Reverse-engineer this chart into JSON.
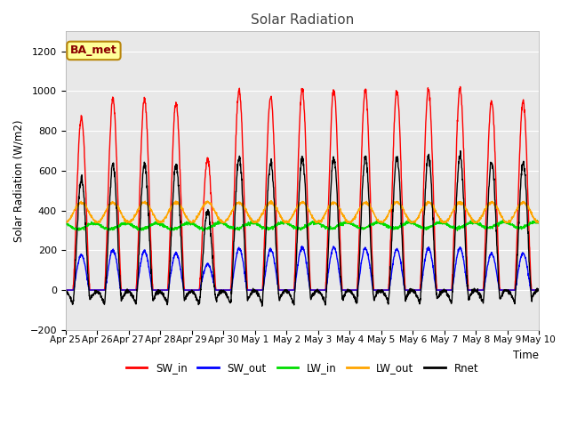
{
  "title": "Solar Radiation",
  "ylabel": "Solar Radiation (W/m2)",
  "xlabel": "Time",
  "ylim": [
    -200,
    1300
  ],
  "yticks": [
    -200,
    0,
    200,
    400,
    600,
    800,
    1000,
    1200
  ],
  "annotation": "BA_met",
  "fig_bg_color": "#ffffff",
  "plot_bg_color": "#e8e8e8",
  "colors": {
    "SW_in": "#ff0000",
    "SW_out": "#0000ff",
    "LW_in": "#00dd00",
    "LW_out": "#ffa500",
    "Rnet": "#000000"
  },
  "day_labels": [
    "Apr 25",
    "Apr 26",
    "Apr 27",
    "Apr 28",
    "Apr 29",
    "Apr 30",
    "May 1",
    "May 2",
    "May 3",
    "May 4",
    "May 5",
    "May 6",
    "May 7",
    "May 8",
    "May 9",
    "May 10"
  ],
  "num_days": 15
}
